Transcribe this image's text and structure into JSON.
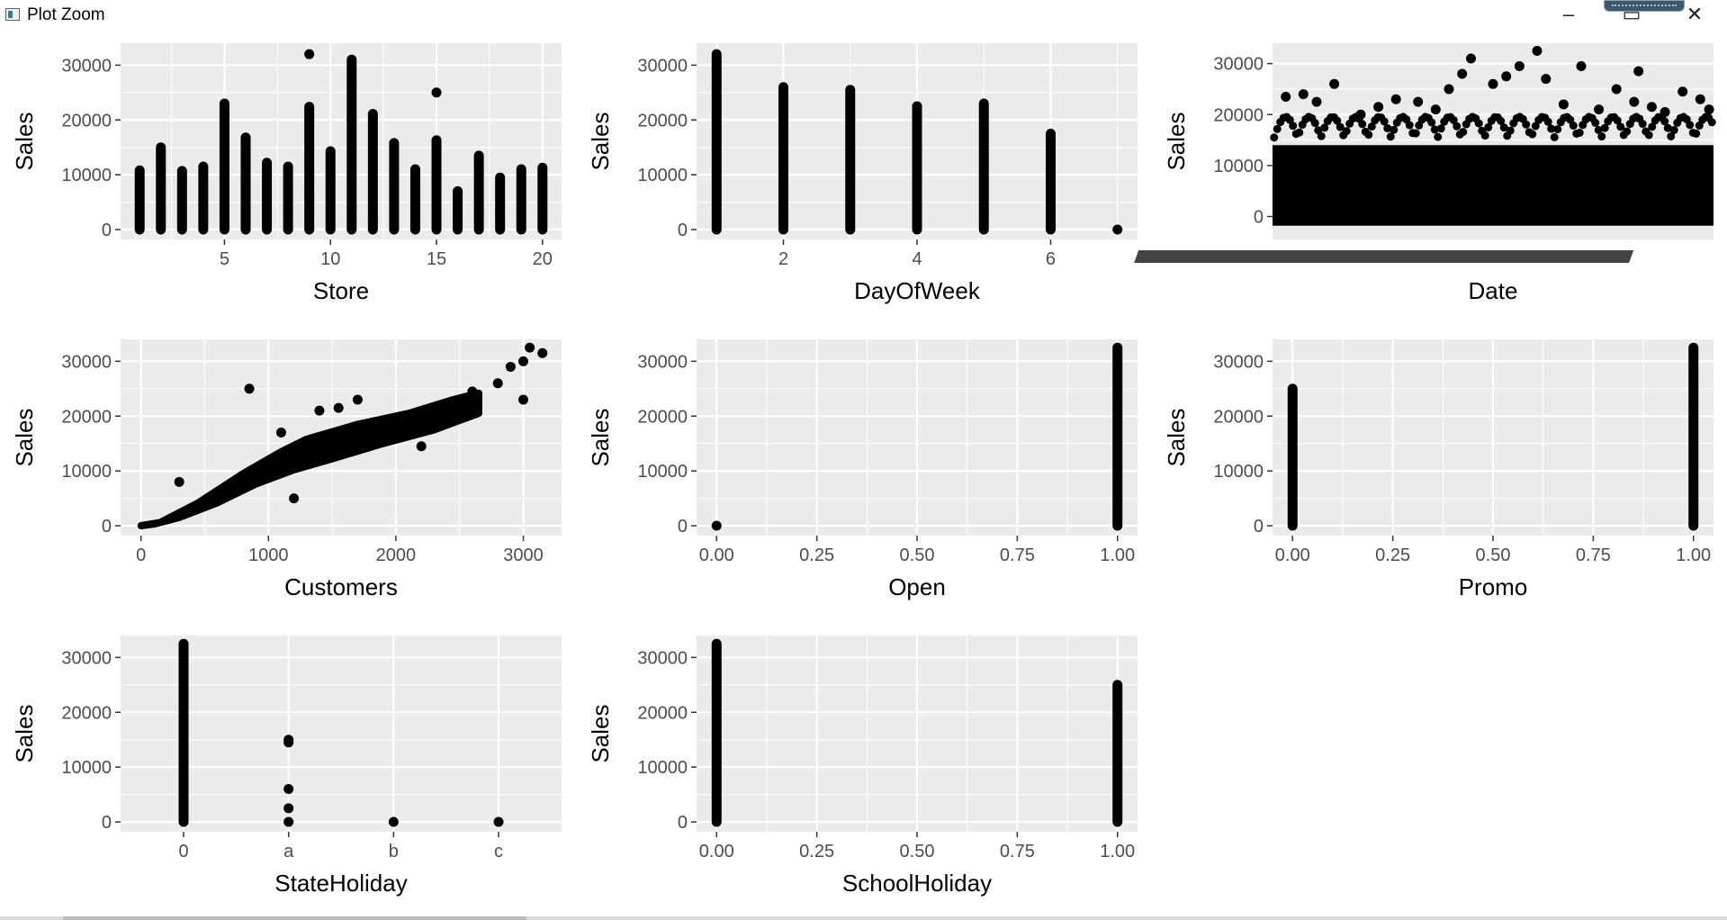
{
  "window": {
    "title": "Plot Zoom",
    "minimize_glyph": "–",
    "maximize_glyph": "▭",
    "close_glyph": "✕"
  },
  "icons": {
    "app": "plot-zoom-app-icon",
    "minimize": "minimize-icon",
    "maximize": "maximize-icon",
    "close": "close-icon"
  },
  "colors": {
    "panel_bg": "#ebebeb",
    "grid": "#ffffff",
    "points": "#000000",
    "axis_text": "#4d4d4d",
    "title_text": "#000000"
  },
  "chart_data": [
    {
      "id": "store",
      "type": "scatter",
      "xlabel": "Store",
      "ylabel": "Sales",
      "x_scale": "continuous",
      "xlim": [
        0.1,
        20.9
      ],
      "ylim": [
        -1800,
        34000
      ],
      "xticks": [
        5,
        10,
        15,
        20
      ],
      "xtick_labels": [
        "5",
        "10",
        "15",
        "20"
      ],
      "yticks": [
        0,
        10000,
        20000,
        30000
      ],
      "ytick_labels": [
        "0",
        "10000",
        "20000",
        "30000"
      ],
      "columns": [
        [
          1,
          0,
          10800
        ],
        [
          2,
          0,
          15000
        ],
        [
          3,
          0,
          10700
        ],
        [
          4,
          0,
          11500
        ],
        [
          5,
          0,
          23000
        ],
        [
          6,
          0,
          16800
        ],
        [
          7,
          0,
          12200
        ],
        [
          8,
          0,
          11500
        ],
        [
          9,
          0,
          22400
        ],
        [
          10,
          0,
          14300
        ],
        [
          11,
          0,
          31000
        ],
        [
          12,
          0,
          21100
        ],
        [
          13,
          0,
          15800
        ],
        [
          14,
          0,
          11000
        ],
        [
          15,
          0,
          16300
        ],
        [
          16,
          0,
          7000
        ],
        [
          17,
          0,
          13500
        ],
        [
          18,
          0,
          9500
        ],
        [
          19,
          0,
          11000
        ],
        [
          20,
          0,
          11300
        ]
      ],
      "points": [
        [
          9,
          32000
        ],
        [
          15,
          25000
        ],
        [
          11,
          20000
        ],
        [
          5,
          3000
        ],
        [
          9,
          6000
        ],
        [
          11,
          4000
        ],
        [
          12,
          2000
        ]
      ]
    },
    {
      "id": "dayofweek",
      "type": "scatter",
      "xlabel": "DayOfWeek",
      "ylabel": "Sales",
      "x_scale": "continuous",
      "xlim": [
        0.7,
        7.3
      ],
      "ylim": [
        -1800,
        34000
      ],
      "xticks": [
        2,
        4,
        6
      ],
      "xtick_labels": [
        "2",
        "4",
        "6"
      ],
      "yticks": [
        0,
        10000,
        20000,
        30000
      ],
      "ytick_labels": [
        "0",
        "10000",
        "20000",
        "30000"
      ],
      "columns": [
        [
          1,
          0,
          32000
        ],
        [
          2,
          0,
          26000
        ],
        [
          3,
          0,
          25500
        ],
        [
          4,
          0,
          22500
        ],
        [
          5,
          0,
          23000
        ],
        [
          6,
          0,
          17500
        ]
      ],
      "points": [
        [
          7,
          0
        ]
      ]
    },
    {
      "id": "date",
      "type": "scatter",
      "xlabel": "Date",
      "ylabel": "Sales",
      "x_scale": "dense",
      "ylim": [
        -4500,
        34000
      ],
      "yticks": [
        0,
        10000,
        20000,
        30000
      ],
      "ytick_labels": [
        "0",
        "10000",
        "20000",
        "30000"
      ],
      "band": [
        -1800,
        14000
      ],
      "points": [
        [
          0.03,
          23500
        ],
        [
          0.07,
          24000
        ],
        [
          0.1,
          22500
        ],
        [
          0.14,
          26000
        ],
        [
          0.2,
          20000
        ],
        [
          0.24,
          21500
        ],
        [
          0.28,
          23000
        ],
        [
          0.33,
          22500
        ],
        [
          0.37,
          21000
        ],
        [
          0.4,
          25000
        ],
        [
          0.43,
          28000
        ],
        [
          0.45,
          31000
        ],
        [
          0.5,
          26000
        ],
        [
          0.53,
          27500
        ],
        [
          0.56,
          29500
        ],
        [
          0.6,
          32500
        ],
        [
          0.62,
          27000
        ],
        [
          0.66,
          22000
        ],
        [
          0.7,
          29500
        ],
        [
          0.74,
          21000
        ],
        [
          0.78,
          25000
        ],
        [
          0.82,
          22500
        ],
        [
          0.83,
          28500
        ],
        [
          0.86,
          21500
        ],
        [
          0.89,
          20500
        ],
        [
          0.93,
          24500
        ],
        [
          0.97,
          23000
        ],
        [
          0.99,
          21000
        ]
      ]
    },
    {
      "id": "customers",
      "type": "scatter",
      "xlabel": "Customers",
      "ylabel": "Sales",
      "x_scale": "continuous",
      "xlim": [
        -160,
        3300
      ],
      "ylim": [
        -1800,
        34000
      ],
      "xticks": [
        0,
        1000,
        2000,
        3000
      ],
      "xtick_labels": [
        "0",
        "1000",
        "2000",
        "3000"
      ],
      "yticks": [
        0,
        10000,
        20000,
        30000
      ],
      "ytick_labels": [
        "0",
        "10000",
        "20000",
        "30000"
      ],
      "cloud": [
        [
          0,
          0
        ],
        [
          150,
          600
        ],
        [
          450,
          4200
        ],
        [
          800,
          9500
        ],
        [
          1100,
          13500
        ],
        [
          1300,
          15800
        ],
        [
          1700,
          18500
        ],
        [
          2100,
          20500
        ],
        [
          2450,
          23000
        ],
        [
          2650,
          24200
        ],
        [
          2650,
          20500
        ],
        [
          2300,
          17500
        ],
        [
          1900,
          15000
        ],
        [
          1500,
          12200
        ],
        [
          1200,
          10200
        ],
        [
          900,
          7600
        ],
        [
          600,
          4200
        ],
        [
          300,
          1500
        ],
        [
          100,
          300
        ]
      ],
      "points": [
        [
          850,
          25000
        ],
        [
          300,
          8000
        ],
        [
          1200,
          5000
        ],
        [
          2600,
          24500
        ],
        [
          2900,
          29000
        ],
        [
          3000,
          30000
        ],
        [
          3050,
          32500
        ],
        [
          3150,
          31500
        ],
        [
          2800,
          26000
        ],
        [
          3000,
          23000
        ],
        [
          1700,
          23000
        ],
        [
          1400,
          21000
        ],
        [
          1100,
          17000
        ],
        [
          2200,
          14500
        ],
        [
          1550,
          21500
        ]
      ]
    },
    {
      "id": "open",
      "type": "scatter",
      "xlabel": "Open",
      "ylabel": "Sales",
      "x_scale": "continuous",
      "xlim": [
        -0.05,
        1.05
      ],
      "ylim": [
        -1800,
        34000
      ],
      "xticks": [
        0,
        0.25,
        0.5,
        0.75,
        1
      ],
      "xtick_labels": [
        "0.00",
        "0.25",
        "0.50",
        "0.75",
        "1.00"
      ],
      "yticks": [
        0,
        10000,
        20000,
        30000
      ],
      "ytick_labels": [
        "0",
        "10000",
        "20000",
        "30000"
      ],
      "columns": [
        [
          1,
          0,
          32500
        ]
      ],
      "points": [
        [
          0,
          0
        ]
      ]
    },
    {
      "id": "promo",
      "type": "scatter",
      "xlabel": "Promo",
      "ylabel": "Sales",
      "x_scale": "continuous",
      "xlim": [
        -0.05,
        1.05
      ],
      "ylim": [
        -1800,
        34000
      ],
      "xticks": [
        0,
        0.25,
        0.5,
        0.75,
        1
      ],
      "xtick_labels": [
        "0.00",
        "0.25",
        "0.50",
        "0.75",
        "1.00"
      ],
      "yticks": [
        0,
        10000,
        20000,
        30000
      ],
      "ytick_labels": [
        "0",
        "10000",
        "20000",
        "30000"
      ],
      "columns": [
        [
          0,
          0,
          25000
        ],
        [
          1,
          0,
          32500
        ]
      ],
      "points": []
    },
    {
      "id": "stateholiday",
      "type": "scatter",
      "xlabel": "StateHoliday",
      "ylabel": "Sales",
      "x_scale": "discrete",
      "categories": [
        "0",
        "a",
        "b",
        "c"
      ],
      "xlim": [
        0.4,
        4.6
      ],
      "ylim": [
        -1800,
        34000
      ],
      "xticks": [
        1,
        2,
        3,
        4
      ],
      "xtick_labels": [
        "0",
        "a",
        "b",
        "c"
      ],
      "yticks": [
        0,
        10000,
        20000,
        30000
      ],
      "ytick_labels": [
        "0",
        "10000",
        "20000",
        "30000"
      ],
      "columns": [
        [
          1,
          0,
          32500
        ]
      ],
      "points": [
        [
          2,
          15000
        ],
        [
          2,
          14500
        ],
        [
          2,
          6000
        ],
        [
          2,
          2500
        ],
        [
          2,
          0
        ],
        [
          3,
          0
        ],
        [
          4,
          0
        ]
      ]
    },
    {
      "id": "schoolholiday",
      "type": "scatter",
      "xlabel": "SchoolHoliday",
      "ylabel": "Sales",
      "x_scale": "continuous",
      "xlim": [
        -0.05,
        1.05
      ],
      "ylim": [
        -1800,
        34000
      ],
      "xticks": [
        0,
        0.25,
        0.5,
        0.75,
        1
      ],
      "xtick_labels": [
        "0.00",
        "0.25",
        "0.50",
        "0.75",
        "1.00"
      ],
      "yticks": [
        0,
        10000,
        20000,
        30000
      ],
      "ytick_labels": [
        "0",
        "10000",
        "20000",
        "30000"
      ],
      "columns": [
        [
          0,
          0,
          32500
        ],
        [
          1,
          0,
          25000
        ]
      ],
      "points": []
    }
  ]
}
